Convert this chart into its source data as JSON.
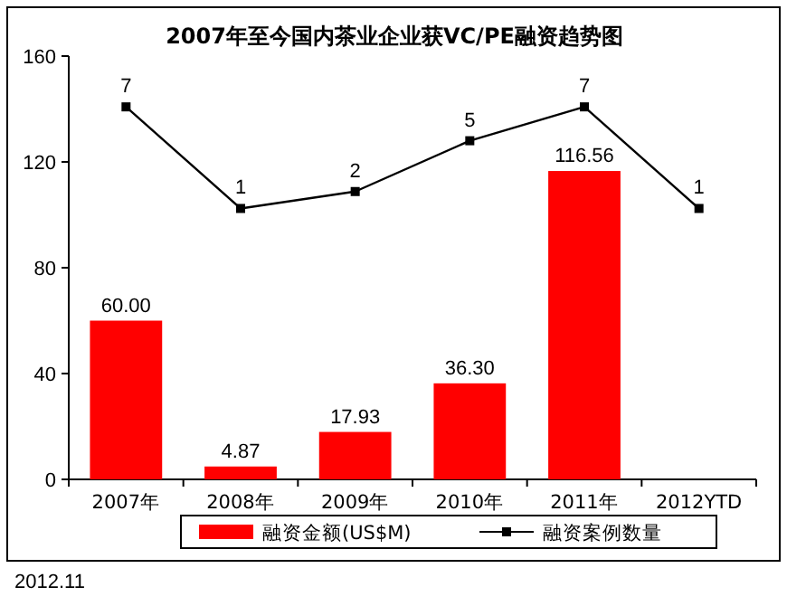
{
  "chart_data": {
    "type": "bar",
    "title": "2007年至今国内茶业企业获VC/PE融资趋势图",
    "categories": [
      "2007年",
      "2008年",
      "2009年",
      "2010年",
      "2011年",
      "2012YTD"
    ],
    "series": [
      {
        "name": "融资金额(US$M)",
        "color": "#ff0000",
        "values": [
          60.0,
          4.87,
          17.93,
          36.3,
          116.56,
          null
        ],
        "value_labels": [
          "60.00",
          "4.87",
          "17.93",
          "36.30",
          "116.56",
          null
        ]
      },
      {
        "name": "融资案例数量",
        "type": "line",
        "axis": "y2",
        "color": "#000000",
        "marker": "square",
        "values": [
          7,
          1,
          2,
          5,
          7,
          1
        ],
        "value_labels": [
          "7",
          "1",
          "2",
          "5",
          "7",
          "1"
        ]
      }
    ],
    "ylim": [
      0,
      160
    ],
    "yticks": [
      0,
      40,
      80,
      120,
      160
    ],
    "y2lim": [
      -15,
      10
    ],
    "legend": "bottom",
    "annotations": [
      "2012.11"
    ]
  }
}
